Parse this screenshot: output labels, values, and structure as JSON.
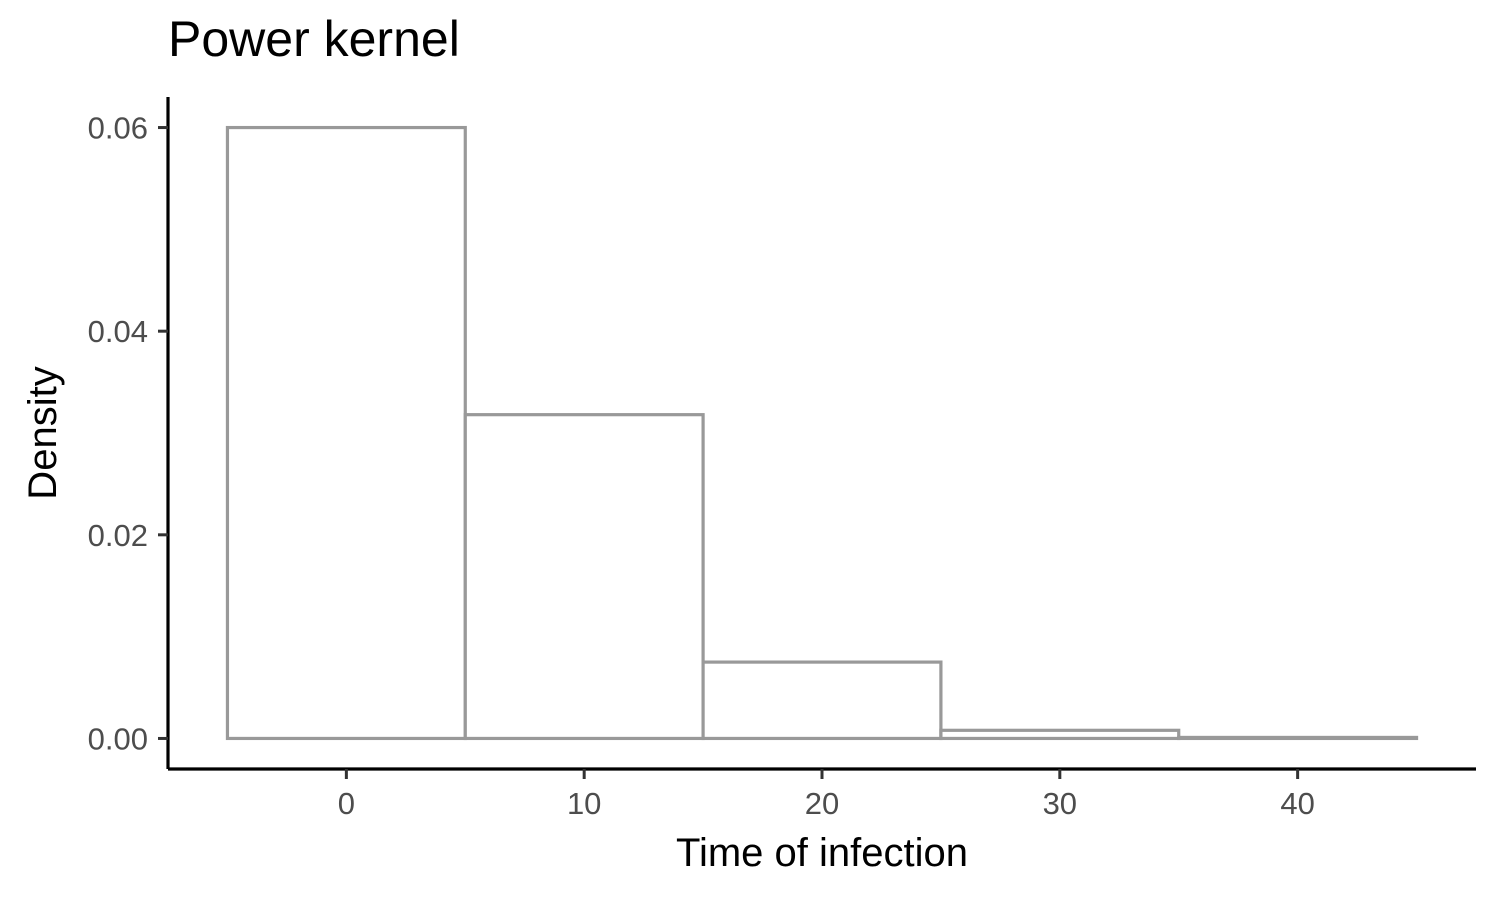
{
  "chart_data": {
    "type": "bar",
    "title": "Power kernel",
    "xlabel": "Time of infection",
    "ylabel": "Density",
    "bins": [
      {
        "x0": -5,
        "x1": 5,
        "density": 0.06
      },
      {
        "x0": 5,
        "x1": 15,
        "density": 0.0318
      },
      {
        "x0": 15,
        "x1": 25,
        "density": 0.0075
      },
      {
        "x0": 25,
        "x1": 35,
        "density": 0.0008
      },
      {
        "x0": 35,
        "x1": 45,
        "density": 0.0001
      }
    ],
    "xlim": [
      -7.5,
      47.5
    ],
    "ylim": [
      -0.003,
      0.063
    ],
    "x_ticks": [
      0,
      10,
      20,
      30,
      40
    ],
    "y_ticks": [
      0.0,
      0.02,
      0.04,
      0.06
    ],
    "x_tick_labels": [
      "0",
      "10",
      "20",
      "30",
      "40"
    ],
    "y_tick_labels": [
      "0.00",
      "0.02",
      "0.04",
      "0.06"
    ],
    "grid": false,
    "bar_fill": "#ffffff",
    "bar_outline": "#999999",
    "axis_color": "#000000",
    "tick_label_color": "#4d4d4d"
  }
}
